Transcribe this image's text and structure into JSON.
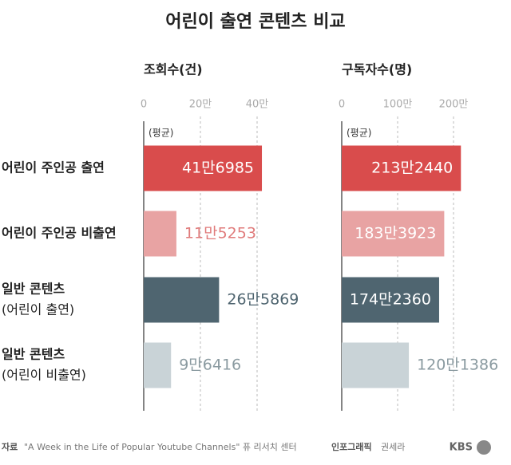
{
  "title": "어린이 출연 콘텐츠 비교",
  "categories": [
    [
      "어린이 주인공 출연"
    ],
    [
      "어린이 주인공 비출연"
    ],
    [
      "일반 콘텐츠",
      "(어린이 출연)"
    ],
    [
      "일반 콘텐츠",
      "(어린이 비출연)"
    ]
  ],
  "colors": [
    "#d94c4c",
    "#e8a3a3",
    "#4f6570",
    "#c9d3d7"
  ],
  "outside_label_colors": [
    "#d94c4c",
    "#e07b7b",
    "#4f6570",
    "#8a9aa0"
  ],
  "chart_data": [
    {
      "type": "bar",
      "title": "조회수(건)",
      "annotation": "(평균)",
      "values": [
        416985,
        115253,
        265869,
        96416
      ],
      "value_labels": [
        "41만6985",
        "11만5253",
        "26만5869",
        "9만6416"
      ],
      "xlim": [
        0,
        400000
      ],
      "xticks": [
        0,
        {
          "value": 200000,
          "label": "20만"
        },
        {
          "value": 400000,
          "label": "40만"
        }
      ],
      "grid": true
    },
    {
      "type": "bar",
      "title": "구독자수(명)",
      "annotation": "(평균)",
      "values": [
        2132440,
        1833923,
        1742360,
        1201386
      ],
      "value_labels": [
        "213만2440",
        "183만3923",
        "174만2360",
        "120만1386"
      ],
      "xlim": [
        0,
        2000000
      ],
      "xticks": [
        0,
        {
          "value": 1000000,
          "label": "100만"
        },
        {
          "value": 2000000,
          "label": "200만"
        }
      ],
      "grid": true
    }
  ],
  "footer": {
    "source_label": "자료",
    "source": "\"A Week in the Life of Popular Youtube Channels\" 퓨 리서치 센터",
    "credit_label": "인포그래픽",
    "credit": "권세라",
    "logo": "KBS"
  }
}
